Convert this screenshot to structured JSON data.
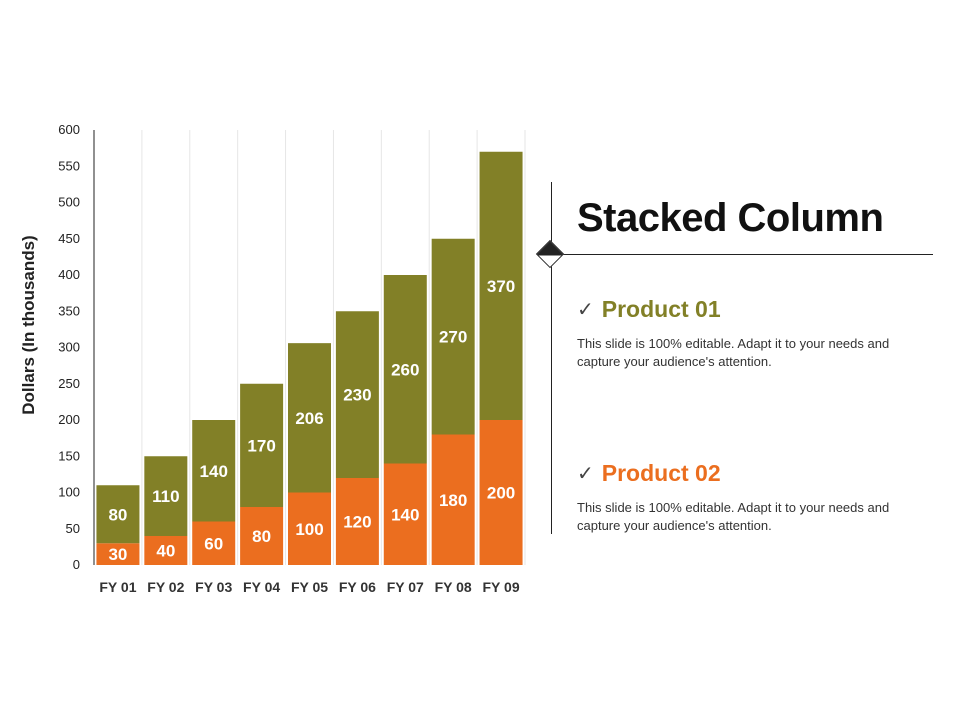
{
  "colors": {
    "product01": "#828027",
    "product02": "#EB6E1F",
    "axis": "#222222",
    "grid": "#e6e6e6"
  },
  "chart_data": {
    "type": "bar",
    "stacked": true,
    "categories": [
      "FY 01",
      "FY 02",
      "FY 03",
      "FY 04",
      "FY 05",
      "FY 06",
      "FY 07",
      "FY 08",
      "FY 09"
    ],
    "series": [
      {
        "name": "Product 02",
        "color": "#EB6E1F",
        "values": [
          30,
          40,
          60,
          80,
          100,
          120,
          140,
          180,
          200
        ]
      },
      {
        "name": "Product 01",
        "color": "#828027",
        "values": [
          80,
          110,
          140,
          170,
          206,
          230,
          260,
          270,
          370
        ]
      }
    ],
    "ylabel": "Dollars (In thousands)",
    "xlabel": "",
    "ylim": [
      0,
      600
    ],
    "yticks": [
      0,
      50,
      100,
      150,
      200,
      250,
      300,
      350,
      400,
      450,
      500,
      550,
      600
    ],
    "grid": "vertical-separators",
    "data_labels": true
  },
  "panel": {
    "title": "Stacked Column",
    "products": [
      {
        "name": "Product 01",
        "check": "✓",
        "color": "#828027",
        "description": "This slide is 100% editable. Adapt it to your needs and capture your audience's attention."
      },
      {
        "name": "Product 02",
        "check": "✓",
        "color": "#EB6E1F",
        "description": "This slide is 100% editable. Adapt it to your needs and capture your audience's attention."
      }
    ]
  }
}
